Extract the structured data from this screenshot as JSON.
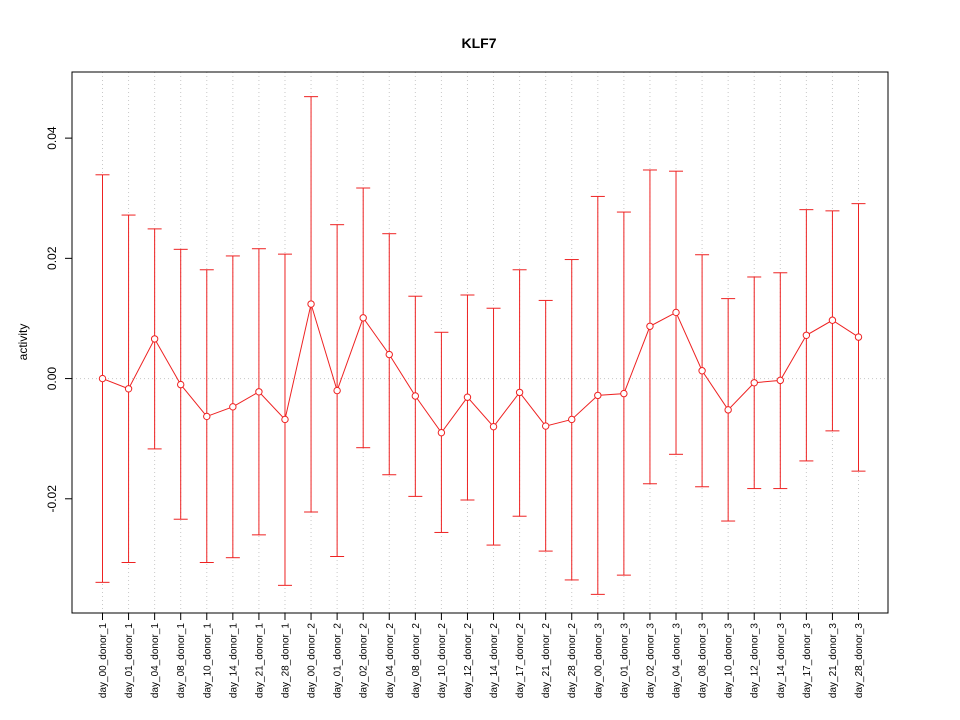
{
  "chart_data": {
    "type": "line",
    "title": "KLF7",
    "xlabel": "",
    "ylabel": "activity",
    "ylim": [
      -0.039,
      0.051
    ],
    "yticks": [
      -0.02,
      0.0,
      0.02,
      0.04
    ],
    "ytick_labels": [
      "-0.02",
      "0.00",
      "0.02",
      "0.04"
    ],
    "grid": true,
    "colors": {
      "series": "#ee2222",
      "grid": "#c8c8c8",
      "axis": "#000000"
    },
    "categories": [
      "day_00_donor_1",
      "day_01_donor_1",
      "day_04_donor_1",
      "day_08_donor_1",
      "day_10_donor_1",
      "day_14_donor_1",
      "day_21_donor_1",
      "day_28_donor_1",
      "day_00_donor_2",
      "day_01_donor_2",
      "day_02_donor_2",
      "day_04_donor_2",
      "day_08_donor_2",
      "day_10_donor_2",
      "day_12_donor_2",
      "day_14_donor_2",
      "day_17_donor_2",
      "day_21_donor_2",
      "day_28_donor_2",
      "day_00_donor_3",
      "day_01_donor_3",
      "day_02_donor_3",
      "day_04_donor_3",
      "day_08_donor_3",
      "day_10_donor_3",
      "day_12_donor_3",
      "day_14_donor_3",
      "day_17_donor_3",
      "day_21_donor_3",
      "day_28_donor_3"
    ],
    "series": [
      {
        "values": [
          0.0,
          -0.0017,
          0.0066,
          -0.001,
          -0.0063,
          -0.0047,
          -0.0022,
          -0.0068,
          0.0124,
          -0.002,
          0.0101,
          0.004,
          -0.0029,
          -0.009,
          -0.0031,
          -0.008,
          -0.0023,
          -0.0079,
          -0.0068,
          -0.0028,
          -0.0025,
          0.0087,
          0.011,
          0.0013,
          -0.0052,
          -0.0007,
          -0.0003,
          0.0072,
          0.0097,
          0.0069
        ],
        "upper": [
          0.0339,
          0.0272,
          0.0249,
          0.0215,
          0.0181,
          0.0204,
          0.0216,
          0.0207,
          0.0469,
          0.0256,
          0.0317,
          0.0241,
          0.0137,
          0.0077,
          0.0139,
          0.0117,
          0.0181,
          0.013,
          0.0198,
          0.0303,
          0.0277,
          0.0347,
          0.0345,
          0.0206,
          0.0133,
          0.0169,
          0.0176,
          0.0281,
          0.0279,
          0.0291
        ],
        "lower": [
          -0.0339,
          -0.0306,
          -0.0117,
          -0.0234,
          -0.0306,
          -0.0298,
          -0.026,
          -0.0344,
          -0.0222,
          -0.0296,
          -0.0115,
          -0.016,
          -0.0196,
          -0.0256,
          -0.0202,
          -0.0277,
          -0.0229,
          -0.0287,
          -0.0335,
          -0.0359,
          -0.0327,
          -0.0175,
          -0.0126,
          -0.018,
          -0.0237,
          -0.0183,
          -0.0183,
          -0.0137,
          -0.0087,
          -0.0154
        ]
      }
    ]
  }
}
